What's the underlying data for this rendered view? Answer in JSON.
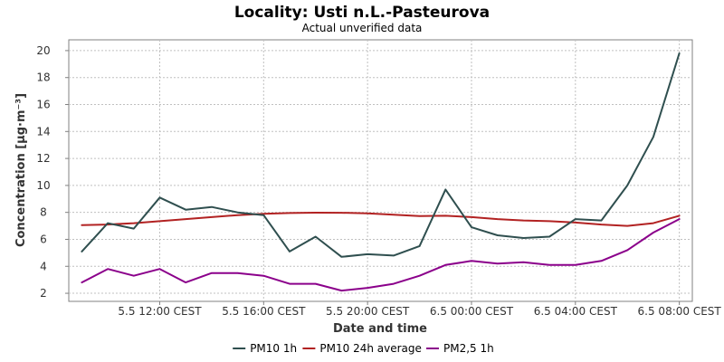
{
  "chart_data": {
    "type": "line",
    "title": "Locality: Usti n.L.-Pasteurova",
    "subtitle": "Actual unverified data",
    "xlabel": "Date and time",
    "ylabel": "Concentration [µg·m⁻³]",
    "ylim": [
      1.4,
      20.8
    ],
    "yticks": [
      2,
      4,
      6,
      8,
      10,
      12,
      14,
      16,
      18,
      20
    ],
    "xlim": [
      "05.05 08:30",
      "06.05 08:30"
    ],
    "xticks": [
      {
        "label": "5.5 12:00 CEST",
        "value": "05.05 12:00"
      },
      {
        "label": "5.5 16:00 CEST",
        "value": "05.05 16:00"
      },
      {
        "label": "5.5 20:00 CEST",
        "value": "05.05 20:00"
      },
      {
        "label": "6.5 00:00 CEST",
        "value": "06.05 00:00"
      },
      {
        "label": "6.5 04:00 CEST",
        "value": "06.05 04:00"
      },
      {
        "label": "6.5 08:00 CEST",
        "value": "06.05 08:00"
      }
    ],
    "grid": true,
    "legend_position": "bottom",
    "x": [
      "05.05 09:00",
      "05.05 10:00",
      "05.05 11:00",
      "05.05 12:00",
      "05.05 13:00",
      "05.05 14:00",
      "05.05 15:00",
      "05.05 16:00",
      "05.05 17:00",
      "05.05 18:00",
      "05.05 19:00",
      "05.05 20:00",
      "05.05 21:00",
      "05.05 22:00",
      "05.05 23:00",
      "06.05 00:00",
      "06.05 01:00",
      "06.05 02:00",
      "06.05 03:00",
      "06.05 04:00",
      "06.05 05:00",
      "06.05 06:00",
      "06.05 07:00",
      "06.05 08:00"
    ],
    "series": [
      {
        "name": "PM10 1h",
        "color": "#2f4f4f",
        "values": [
          5.1,
          7.2,
          6.8,
          9.1,
          8.2,
          8.4,
          8.0,
          7.8,
          5.1,
          6.2,
          4.7,
          4.9,
          4.8,
          5.5,
          9.7,
          6.9,
          6.3,
          6.1,
          6.2,
          7.5,
          7.4,
          10.0,
          13.6,
          19.8
        ]
      },
      {
        "name": "PM10 24h average",
        "color": "#b22222",
        "values": [
          7.05,
          7.1,
          7.2,
          7.35,
          7.5,
          7.65,
          7.8,
          7.9,
          7.95,
          7.98,
          7.97,
          7.93,
          7.83,
          7.73,
          7.75,
          7.65,
          7.5,
          7.4,
          7.35,
          7.25,
          7.1,
          7.0,
          7.2,
          7.75
        ]
      },
      {
        "name": "PM2,5 1h",
        "color": "#8b008b",
        "values": [
          2.8,
          3.8,
          3.3,
          3.8,
          2.8,
          3.5,
          3.5,
          3.3,
          2.7,
          2.7,
          2.2,
          2.4,
          2.7,
          3.3,
          4.1,
          4.4,
          4.2,
          4.3,
          4.1,
          4.1,
          4.4,
          5.2,
          6.5,
          7.5
        ]
      }
    ]
  }
}
